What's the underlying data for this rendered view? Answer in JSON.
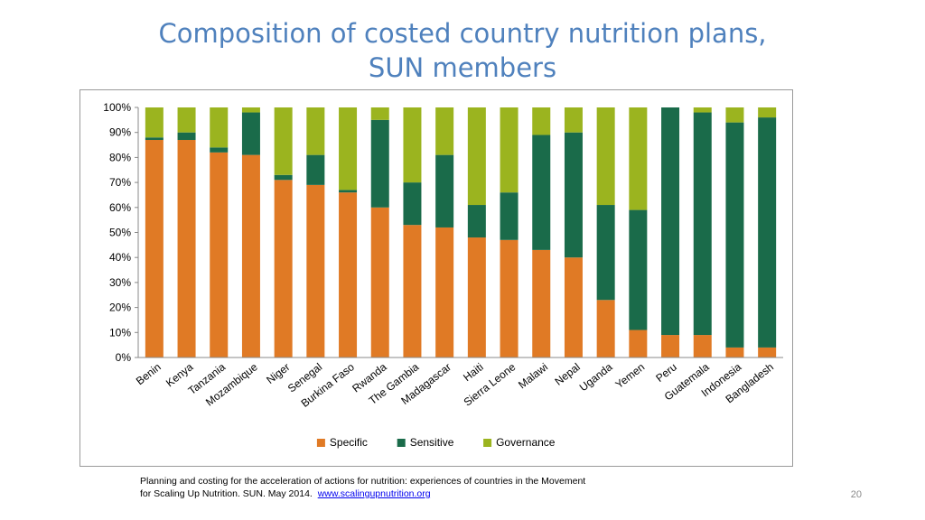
{
  "slide": {
    "title_line1": "Composition of costed country nutrition plans,",
    "title_line2": "SUN members",
    "caption_line1": "Planning and costing for the acceleration of actions for nutrition: experiences of countries in the Movement",
    "caption_line2": "for Scaling Up Nutrition. SUN. May 2014.",
    "caption_link": "www.scalingupnutrition.org",
    "page_number": "20"
  },
  "chart_data": {
    "type": "bar",
    "stacked": true,
    "title": "",
    "xlabel": "",
    "ylabel": "",
    "ylim": [
      0,
      100
    ],
    "y_ticks": [
      "0%",
      "10%",
      "20%",
      "30%",
      "40%",
      "50%",
      "60%",
      "70%",
      "80%",
      "90%",
      "100%"
    ],
    "legend_position": "bottom",
    "grid": false,
    "categories": [
      "Benin",
      "Kenya",
      "Tanzania",
      "Mozambique",
      "Niger",
      "Senegal",
      "Burkina Faso",
      "Rwanda",
      "The Gambia",
      "Madagascar",
      "Haiti",
      "Sierra Leone",
      "Malawi",
      "Nepal",
      "Uganda",
      "Yemen",
      "Peru",
      "Guatemala",
      "Indonesia",
      "Bangladesh"
    ],
    "series": [
      {
        "name": "Specific",
        "color": "#e07a25",
        "values": [
          87,
          87,
          82,
          81,
          71,
          69,
          66,
          60,
          53,
          52,
          48,
          47,
          43,
          40,
          23,
          11,
          9,
          9,
          4,
          4
        ]
      },
      {
        "name": "Sensitive",
        "color": "#1a6b4a",
        "values": [
          1,
          3,
          2,
          17,
          2,
          12,
          1,
          35,
          17,
          29,
          13,
          19,
          46,
          50,
          38,
          48,
          91,
          89,
          90,
          92
        ]
      },
      {
        "name": "Governance",
        "color": "#9bb41f",
        "values": [
          12,
          10,
          16,
          2,
          27,
          19,
          33,
          5,
          30,
          19,
          39,
          34,
          11,
          10,
          39,
          41,
          0,
          2,
          6,
          4
        ]
      }
    ]
  }
}
